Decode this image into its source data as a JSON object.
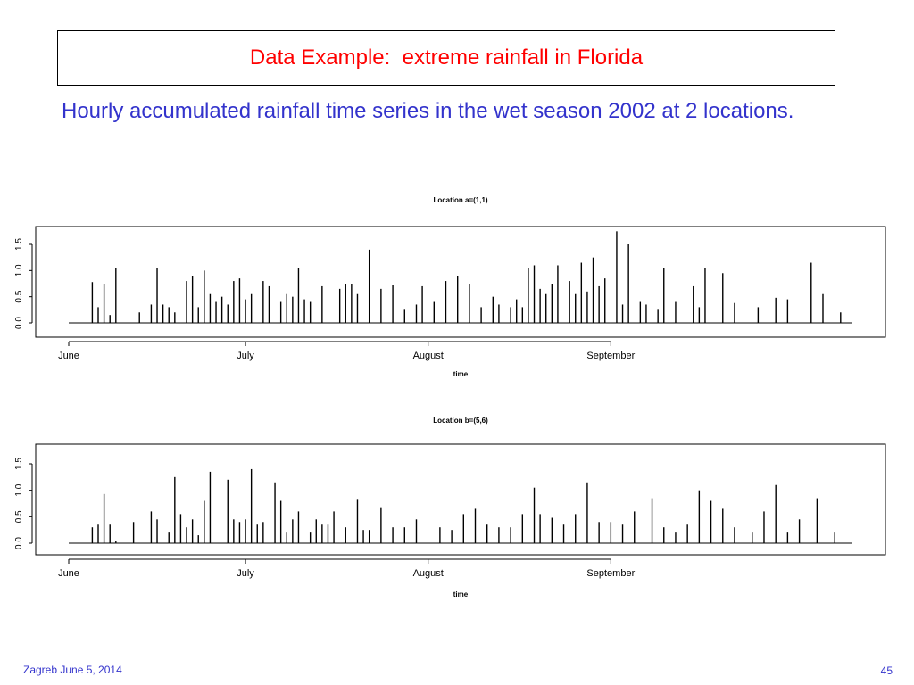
{
  "slide": {
    "title": "Data Example:  extreme rainfall in Florida",
    "subtitle": "Hourly accumulated rainfall time series in the wet season 2002 at 2 locations.",
    "footer_left": "Zagreb June 5, 2014",
    "page_number": "45",
    "colors": {
      "title": "#ff0000",
      "body_text": "#3333cc",
      "plot_line": "#000000"
    }
  },
  "chart_data": [
    {
      "type": "line",
      "title": "Location a=(1,1)",
      "xlabel": "time",
      "ylabel": "",
      "xlim": [
        "2002-06-01",
        "2002-10-12"
      ],
      "ylim": [
        0,
        1.5
      ],
      "yticks": [
        "0.0",
        "0.5",
        "1.0",
        "1.5"
      ],
      "xticks": [
        {
          "label": "June",
          "date": "2002-06-01"
        },
        {
          "label": "July",
          "date": "2002-07-01"
        },
        {
          "label": "August",
          "date": "2002-08-01"
        },
        {
          "label": "September",
          "date": "2002-09-01"
        }
      ],
      "grid": false,
      "series": [
        {
          "x": [
            "2002-06-05",
            "2002-06-06",
            "2002-06-07",
            "2002-06-08",
            "2002-06-09",
            "2002-06-13",
            "2002-06-15",
            "2002-06-16",
            "2002-06-17",
            "2002-06-18",
            "2002-06-19",
            "2002-06-21",
            "2002-06-22",
            "2002-06-23",
            "2002-06-24",
            "2002-06-25",
            "2002-06-26",
            "2002-06-27",
            "2002-06-28",
            "2002-06-29",
            "2002-06-30",
            "2002-07-01",
            "2002-07-02",
            "2002-07-04",
            "2002-07-05",
            "2002-07-07",
            "2002-07-08",
            "2002-07-09",
            "2002-07-10",
            "2002-07-11",
            "2002-07-12",
            "2002-07-14",
            "2002-07-17",
            "2002-07-18",
            "2002-07-19",
            "2002-07-20",
            "2002-07-22",
            "2002-07-24",
            "2002-07-26",
            "2002-07-28",
            "2002-07-30",
            "2002-07-31",
            "2002-08-02",
            "2002-08-04",
            "2002-08-06",
            "2002-08-08",
            "2002-08-10",
            "2002-08-12",
            "2002-08-13",
            "2002-08-15",
            "2002-08-16",
            "2002-08-17",
            "2002-08-18",
            "2002-08-19",
            "2002-08-20",
            "2002-08-21",
            "2002-08-22",
            "2002-08-23",
            "2002-08-25",
            "2002-08-26",
            "2002-08-27",
            "2002-08-28",
            "2002-08-29",
            "2002-08-30",
            "2002-08-31",
            "2002-09-02",
            "2002-09-03",
            "2002-09-04",
            "2002-09-06",
            "2002-09-07",
            "2002-09-09",
            "2002-09-10",
            "2002-09-12",
            "2002-09-15",
            "2002-09-16",
            "2002-09-17",
            "2002-09-20",
            "2002-09-22",
            "2002-09-26",
            "2002-09-29",
            "2002-10-01",
            "2002-10-05",
            "2002-10-07",
            "2002-10-10"
          ],
          "y": [
            0.78,
            0.3,
            0.75,
            0.15,
            1.05,
            0.2,
            0.35,
            1.05,
            0.35,
            0.3,
            0.2,
            0.8,
            0.9,
            0.3,
            1.0,
            0.55,
            0.4,
            0.5,
            0.35,
            0.8,
            0.85,
            0.45,
            0.55,
            0.8,
            0.7,
            0.4,
            0.55,
            0.5,
            1.05,
            0.45,
            0.4,
            0.7,
            0.65,
            0.75,
            0.75,
            0.55,
            1.4,
            0.65,
            0.72,
            0.25,
            0.35,
            0.7,
            0.4,
            0.8,
            0.9,
            0.75,
            0.3,
            0.5,
            0.35,
            0.3,
            0.45,
            0.3,
            1.05,
            1.1,
            0.65,
            0.55,
            0.75,
            1.1,
            0.8,
            0.55,
            1.15,
            0.6,
            1.25,
            0.7,
            0.85,
            1.75,
            0.35,
            1.5,
            0.4,
            0.35,
            0.25,
            1.05,
            0.4,
            0.7,
            0.3,
            1.05,
            0.95,
            0.38,
            0.3,
            0.48,
            0.45,
            1.15,
            0.55,
            0.2
          ],
          "color": "#000000"
        }
      ]
    },
    {
      "type": "line",
      "title": "Location b=(5,6)",
      "xlabel": "time",
      "ylabel": "",
      "xlim": [
        "2002-06-01",
        "2002-10-12"
      ],
      "ylim": [
        0,
        1.5
      ],
      "yticks": [
        "0.0",
        "0.5",
        "1.0",
        "1.5"
      ],
      "xticks": [
        {
          "label": "June",
          "date": "2002-06-01"
        },
        {
          "label": "July",
          "date": "2002-07-01"
        },
        {
          "label": "August",
          "date": "2002-08-01"
        },
        {
          "label": "September",
          "date": "2002-09-01"
        }
      ],
      "grid": false,
      "series": [
        {
          "x": [
            "2002-06-05",
            "2002-06-06",
            "2002-06-07",
            "2002-06-08",
            "2002-06-09",
            "2002-06-12",
            "2002-06-15",
            "2002-06-16",
            "2002-06-18",
            "2002-06-19",
            "2002-06-20",
            "2002-06-21",
            "2002-06-22",
            "2002-06-23",
            "2002-06-24",
            "2002-06-25",
            "2002-06-28",
            "2002-06-29",
            "2002-06-30",
            "2002-07-01",
            "2002-07-02",
            "2002-07-03",
            "2002-07-04",
            "2002-07-06",
            "2002-07-07",
            "2002-07-08",
            "2002-07-09",
            "2002-07-10",
            "2002-07-12",
            "2002-07-13",
            "2002-07-14",
            "2002-07-15",
            "2002-07-16",
            "2002-07-18",
            "2002-07-20",
            "2002-07-21",
            "2002-07-22",
            "2002-07-24",
            "2002-07-26",
            "2002-07-28",
            "2002-07-30",
            "2002-08-03",
            "2002-08-05",
            "2002-08-07",
            "2002-08-09",
            "2002-08-11",
            "2002-08-13",
            "2002-08-15",
            "2002-08-17",
            "2002-08-19",
            "2002-08-20",
            "2002-08-22",
            "2002-08-24",
            "2002-08-26",
            "2002-08-28",
            "2002-08-30",
            "2002-09-01",
            "2002-09-03",
            "2002-09-05",
            "2002-09-08",
            "2002-09-10",
            "2002-09-12",
            "2002-09-14",
            "2002-09-16",
            "2002-09-18",
            "2002-09-20",
            "2002-09-22",
            "2002-09-25",
            "2002-09-27",
            "2002-09-29",
            "2002-10-01",
            "2002-10-03",
            "2002-10-06",
            "2002-10-09"
          ],
          "y": [
            0.3,
            0.35,
            0.93,
            0.35,
            0.05,
            0.4,
            0.6,
            0.45,
            0.2,
            1.25,
            0.55,
            0.3,
            0.45,
            0.15,
            0.8,
            1.35,
            1.2,
            0.45,
            0.4,
            0.45,
            1.4,
            0.35,
            0.4,
            1.15,
            0.8,
            0.2,
            0.45,
            0.6,
            0.2,
            0.45,
            0.35,
            0.35,
            0.6,
            0.3,
            0.82,
            0.25,
            0.25,
            0.68,
            0.3,
            0.3,
            0.45,
            0.3,
            0.25,
            0.55,
            0.65,
            0.35,
            0.3,
            0.3,
            0.55,
            1.05,
            0.55,
            0.48,
            0.35,
            0.55,
            1.15,
            0.4,
            0.4,
            0.35,
            0.6,
            0.85,
            0.3,
            0.2,
            0.35,
            1.0,
            0.8,
            0.65,
            0.3,
            0.2,
            0.6,
            1.1,
            0.2,
            0.45,
            0.85,
            0.2
          ],
          "color": "#000000"
        }
      ]
    }
  ]
}
